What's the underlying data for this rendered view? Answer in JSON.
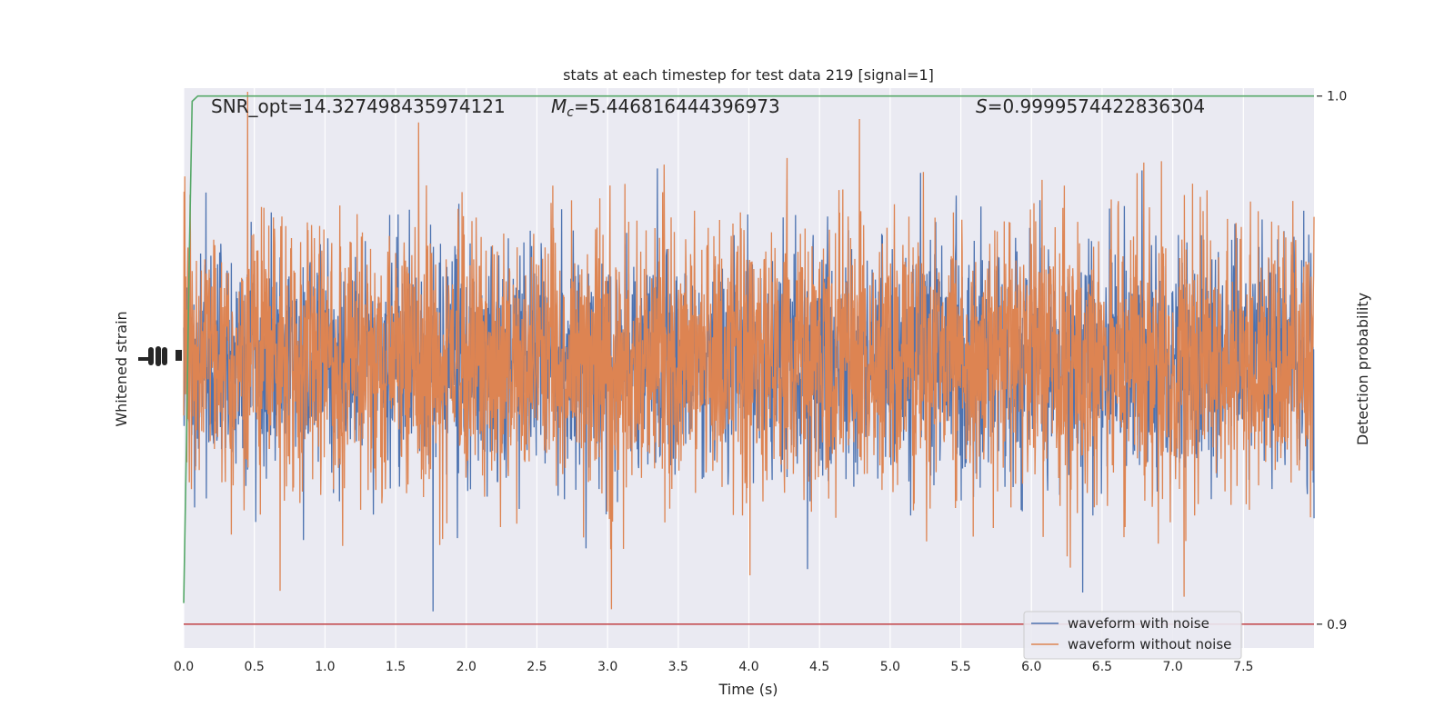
{
  "chart_data": {
    "type": "line",
    "title": "stats at each timestep for test data 219 [signal=1]",
    "xlabel": "Time (s)",
    "ylabel_left": "Whitened strain",
    "ylabel_right": "Detection probability",
    "xlim": [
      0.0,
      8.0
    ],
    "x_ticks": [
      "0.0",
      "0.5",
      "1.0",
      "1.5",
      "2.0",
      "2.5",
      "3.0",
      "3.5",
      "4.0",
      "4.5",
      "5.0",
      "5.5",
      "6.0",
      "6.5",
      "7.0",
      "7.5"
    ],
    "x_tick_values": [
      0.0,
      0.5,
      1.0,
      1.5,
      2.0,
      2.5,
      3.0,
      3.5,
      4.0,
      4.5,
      5.0,
      5.5,
      6.0,
      6.5,
      7.0,
      7.5
    ],
    "y_right_lim": [
      0.8955,
      1.0015
    ],
    "y_right_ticks": [
      "1.0",
      "0.9"
    ],
    "y_right_tick_values": [
      1.0,
      0.9
    ],
    "annotations": {
      "snr": "SNR_opt=14.327498435974121",
      "mc_symbol": "M",
      "mc_sub": "c",
      "mc_value": "=5.446816444396973",
      "s_symbol": "S",
      "s_value": "=0.9999574422836304"
    },
    "threshold": {
      "value": 0.9,
      "color": "#c44e52"
    },
    "detection_probability": {
      "color": "#55a868",
      "x": [
        0.0,
        0.02,
        0.04,
        0.06,
        0.1,
        0.15,
        0.2,
        8.0
      ],
      "y": [
        0.904,
        0.935,
        0.97,
        0.999,
        1.0,
        1.0,
        1.0,
        1.0
      ]
    },
    "series": [
      {
        "name": "waveform with noise",
        "color": "#4c72b0"
      },
      {
        "name": "waveform without noise",
        "color": "#dd8452"
      }
    ],
    "legend_position": "lower-right",
    "grid": true
  }
}
